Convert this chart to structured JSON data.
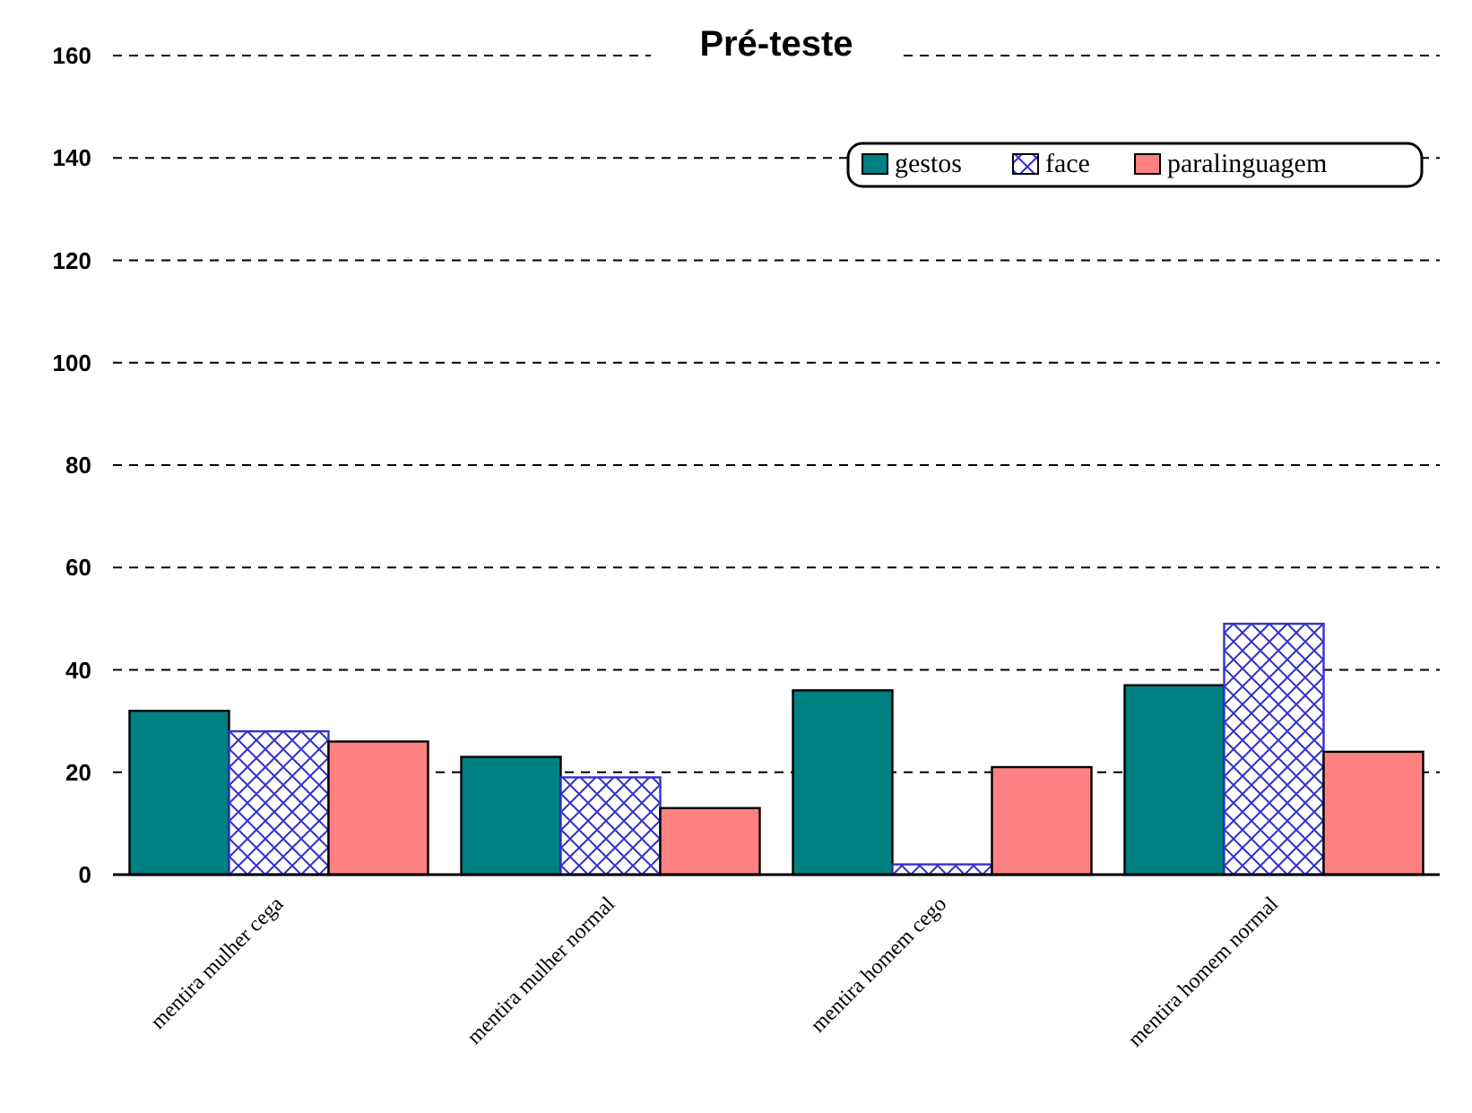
{
  "chart_data": {
    "type": "bar",
    "title": "Pré-teste",
    "categories": [
      "mentira mulher cega",
      "mentira mulher normal",
      "mentira homem cego",
      "mentira homem normal"
    ],
    "series": [
      {
        "name": "gestos",
        "color": "#008080",
        "values": [
          32,
          23,
          36,
          37
        ]
      },
      {
        "name": "face",
        "color": "#3333cc",
        "values": [
          28,
          19,
          2,
          49
        ]
      },
      {
        "name": "paralinguagem",
        "color": "#ff8080",
        "values": [
          26,
          13,
          21,
          24
        ]
      }
    ],
    "ylim": [
      0,
      160
    ],
    "yticks": [
      0,
      20,
      40,
      60,
      80,
      100,
      120,
      140,
      160
    ],
    "grid": "y",
    "legend": "top right"
  }
}
